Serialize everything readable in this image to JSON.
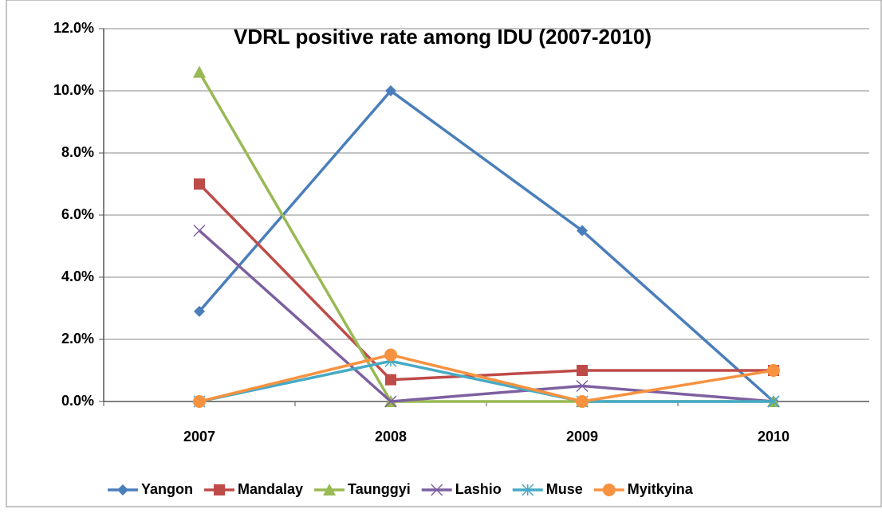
{
  "chart_data": {
    "type": "line",
    "title": "VDRL positive rate among IDU (2007-2010)",
    "categories": [
      "2007",
      "2008",
      "2009",
      "2010"
    ],
    "series": [
      {
        "name": "Yangon",
        "color": "#4a7ebb",
        "marker": "diamond",
        "values": [
          2.9,
          10.0,
          5.5,
          0
        ]
      },
      {
        "name": "Mandalay",
        "color": "#be4b48",
        "marker": "square",
        "values": [
          7.0,
          0.7,
          1.0,
          1.0
        ]
      },
      {
        "name": "Taunggyi",
        "color": "#98b954",
        "marker": "triangle",
        "values": [
          10.6,
          0,
          0,
          0
        ]
      },
      {
        "name": "Lashio",
        "color": "#7d60a0",
        "marker": "x",
        "values": [
          5.5,
          0,
          0.5,
          0
        ]
      },
      {
        "name": "Muse",
        "color": "#46aac5",
        "marker": "star",
        "values": [
          0,
          1.3,
          0,
          0
        ]
      },
      {
        "name": "Myitkyina",
        "color": "#f69240",
        "marker": "circle",
        "values": [
          0,
          1.5,
          0,
          1.0
        ]
      }
    ],
    "ylim": [
      0,
      12
    ],
    "yticks": [
      {
        "value": 0,
        "label": "0.0%"
      },
      {
        "value": 2,
        "label": "2.0%"
      },
      {
        "value": 4,
        "label": "4.0%"
      },
      {
        "value": 6,
        "label": "6.0%"
      },
      {
        "value": 8,
        "label": "8.0%"
      },
      {
        "value": 10,
        "label": "10.0%"
      },
      {
        "value": 12,
        "label": "12.0%"
      }
    ],
    "grid": true,
    "legend": "bottom"
  }
}
